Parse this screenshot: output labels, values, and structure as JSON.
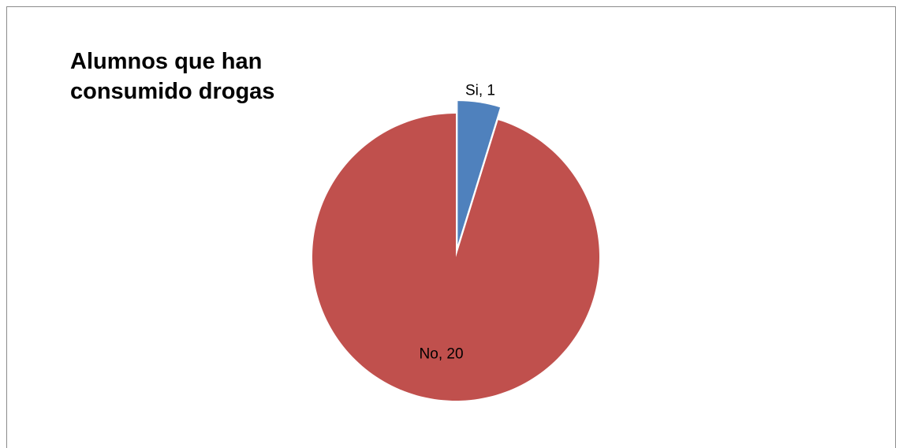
{
  "chart_data": {
    "type": "pie",
    "title": "Alumnos que han consumido drogas",
    "slices": [
      {
        "label": "Si",
        "value": 1,
        "color": "#4f81bd",
        "exploded": true,
        "data_label": "Si, 1"
      },
      {
        "label": "No",
        "value": 20,
        "color": "#c0504d",
        "exploded": false,
        "data_label": "No, 20"
      }
    ],
    "legend": "none"
  }
}
